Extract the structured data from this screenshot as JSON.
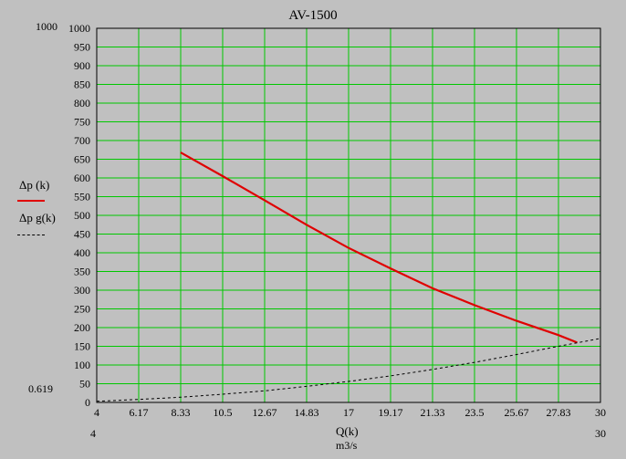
{
  "chart_data": {
    "type": "line",
    "title": "AV-1500",
    "xlabel": "Q(k)",
    "xunit": "m3/s",
    "ylabel_top": "1000",
    "ylabel_bottom": "0.619",
    "xlabel_left": "4",
    "xlabel_right": "30",
    "xlim": [
      4,
      30
    ],
    "ylim": [
      0,
      1000
    ],
    "grid": true,
    "grid_color": "#00c800",
    "plot_bg": "#c0c0c0",
    "x_ticks": [
      "4",
      "6.17",
      "8.33",
      "10.5",
      "12.67",
      "14.83",
      "17",
      "19.17",
      "21.33",
      "23.5",
      "25.67",
      "27.83",
      "30"
    ],
    "y_ticks": [
      "0",
      "50",
      "100",
      "150",
      "200",
      "250",
      "300",
      "350",
      "400",
      "450",
      "500",
      "550",
      "600",
      "650",
      "700",
      "750",
      "800",
      "850",
      "900",
      "950",
      "1000"
    ],
    "legend": {
      "placement": "left",
      "entries": [
        "Δp  (k)",
        "Δp g(k)"
      ]
    },
    "series": [
      {
        "name": "Δp  (k)",
        "color": "#e00000",
        "style": "solid",
        "x": [
          8.33,
          10.5,
          12.67,
          14.83,
          17,
          19.17,
          21.33,
          23.5,
          25.67,
          27.83,
          28.8
        ],
        "y": [
          668,
          605,
          540,
          475,
          413,
          358,
          305,
          260,
          218,
          180,
          160
        ]
      },
      {
        "name": "Δp g(k)",
        "color": "#000000",
        "style": "dashed",
        "x": [
          4,
          6.17,
          8.33,
          10.5,
          12.67,
          14.83,
          17,
          19.17,
          21.33,
          23.5,
          25.67,
          27.83,
          30
        ],
        "y": [
          3,
          8,
          14,
          22,
          31,
          43,
          56,
          71,
          88,
          107,
          128,
          150,
          171
        ]
      }
    ]
  }
}
